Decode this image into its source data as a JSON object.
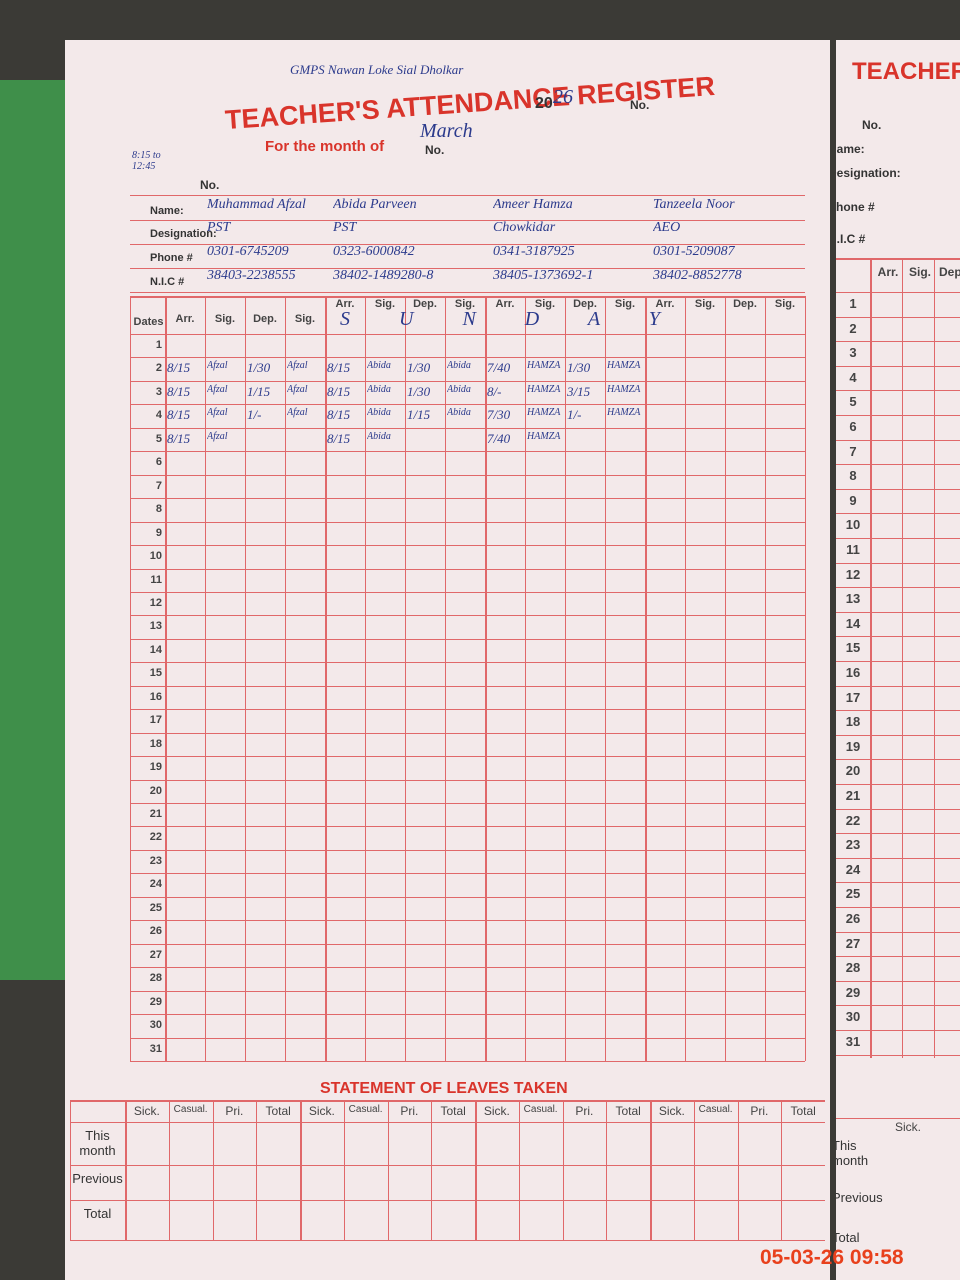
{
  "header": {
    "school": "GMPS Nawan Loke Sial Dholkar",
    "margin_note": "8:15 to 12:45",
    "title": "TEACHER'S ATTENDANCE REGISTER",
    "month_label": "For the month of",
    "month": "March",
    "no_label": "No.",
    "year_prefix": "20",
    "year": "26"
  },
  "fields": [
    "Name:",
    "Designation:",
    "Phone #",
    "N.I.C #"
  ],
  "teachers": [
    {
      "name": "Muhammad Afzal",
      "designation": "PST",
      "phone": "0301-6745209",
      "nic": "38403-2238555",
      "attendance": {
        "2": {
          "arr": "8/15",
          "arr_sig": "Afzal",
          "dep": "1/30",
          "dep_sig": "Afzal"
        },
        "3": {
          "arr": "8/15",
          "arr_sig": "Afzal",
          "dep": "1/15",
          "dep_sig": "Afzal"
        },
        "4": {
          "arr": "8/15",
          "arr_sig": "Afzal",
          "dep": "1/-",
          "dep_sig": "Afzal"
        },
        "5": {
          "arr": "8/15",
          "arr_sig": "Afzal"
        }
      }
    },
    {
      "name": "Abida Parveen",
      "designation": "PST",
      "phone": "0323-6000842",
      "nic": "38402-1489280-8",
      "attendance": {
        "2": {
          "arr": "8/15",
          "arr_sig": "Abida",
          "dep": "1/30",
          "dep_sig": "Abida"
        },
        "3": {
          "arr": "8/15",
          "arr_sig": "Abida",
          "dep": "1/30",
          "dep_sig": "Abida"
        },
        "4": {
          "arr": "8/15",
          "arr_sig": "Abida",
          "dep": "1/15",
          "dep_sig": "Abida"
        },
        "5": {
          "arr": "8/15",
          "arr_sig": "Abida"
        }
      }
    },
    {
      "name": "Ameer Hamza",
      "designation": "Chowkidar",
      "phone": "0341-3187925",
      "nic": "38405-1373692-1",
      "attendance": {
        "2": {
          "arr": "7/40",
          "arr_sig": "HAMZA",
          "dep": "1/30",
          "dep_sig": "HAMZA"
        },
        "3": {
          "arr": "8/-",
          "arr_sig": "HAMZA",
          "dep": "3/15",
          "dep_sig": "HAMZA"
        },
        "4": {
          "arr": "7/30",
          "arr_sig": "HAMZA",
          "dep": "1/-",
          "dep_sig": "HAMZA"
        },
        "5": {
          "arr": "7/40",
          "arr_sig": "HAMZA"
        }
      }
    },
    {
      "name": "Tanzeela Noor",
      "designation": "AEO",
      "phone": "0301-5209087",
      "nic": "38402-8852778",
      "attendance": {}
    }
  ],
  "notes": {
    "1": "S U N D A Y"
  },
  "columns": [
    "Arr.",
    "Sig.",
    "Dep.",
    "Sig."
  ],
  "dates_label": "Dates",
  "dates": [
    1,
    2,
    3,
    4,
    5,
    6,
    7,
    8,
    9,
    10,
    11,
    12,
    13,
    14,
    15,
    16,
    17,
    18,
    19,
    20,
    21,
    22,
    23,
    24,
    25,
    26,
    27,
    28,
    29,
    30,
    31
  ],
  "leaves": {
    "title": "STATEMENT OF LEAVES TAKEN",
    "columns": [
      "Sick.",
      "Casual.",
      "Pri.",
      "Total"
    ],
    "rows": [
      "This month",
      "Previous",
      "Total"
    ]
  },
  "timestamp": "05-03-26 09:58"
}
